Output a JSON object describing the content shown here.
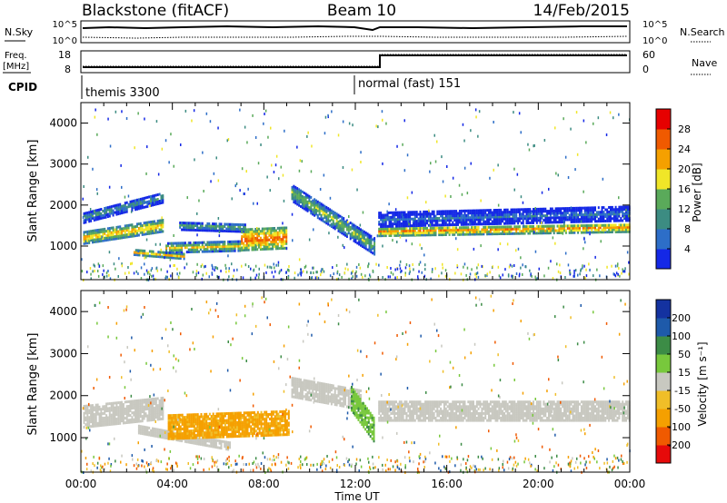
{
  "header": {
    "station": "Blackstone (fitACF)",
    "beam": "Beam 10",
    "date": "14/Feb/2015"
  },
  "noise_panel": {
    "left_label": "N.Sky",
    "right_label": "N.Search",
    "ticks": [
      "10^5",
      "10^0"
    ]
  },
  "freq_panel": {
    "left_label_top": "Freq.",
    "left_label_bottom": "[MHz]",
    "left_ticks": [
      "18",
      "8"
    ],
    "right_label": "Nave",
    "right_ticks": [
      "60",
      "0"
    ]
  },
  "cpid": {
    "label": "CPID",
    "modes": [
      "themis 3300",
      "normal (fast) 151"
    ]
  },
  "x_axis": {
    "ticks": [
      "00:00",
      "04:00",
      "08:00",
      "12:00",
      "16:00",
      "20:00",
      "00:00"
    ],
    "label": "Time UT"
  },
  "y_axis": {
    "ticks": [
      "1000",
      "2000",
      "3000",
      "4000"
    ],
    "label": "Slant Range [km]"
  },
  "power_panel": {
    "colorbar_label": "Power [dB]",
    "colorbar_ticks": [
      "4",
      "8",
      "12",
      "16",
      "20",
      "24",
      "28"
    ],
    "colors": [
      "#1428e6",
      "#2d6ec8",
      "#3c8c82",
      "#5aaa5a",
      "#f0e628",
      "#f5a000",
      "#f05a00",
      "#e60000"
    ]
  },
  "velocity_panel": {
    "colorbar_label": "Velocity [m s⁻¹]",
    "colorbar_ticks": [
      "-200",
      "-100",
      "-50",
      "-15",
      "15",
      "50",
      "100",
      "200"
    ],
    "colors": [
      "#e60a0a",
      "#f05a00",
      "#f5a000",
      "#f0be28",
      "#c8c8c0",
      "#78c83c",
      "#3c8c46",
      "#1e5aaa",
      "#1432a0"
    ]
  },
  "chart_data": {
    "type": "heatmap",
    "x_range_hours": [
      0,
      24
    ],
    "y_range_km": [
      180,
      4500
    ],
    "mode_change_hour": 13,
    "power_echo_bands": [
      {
        "start_hour": 0.1,
        "end_hour": 3.6,
        "center_km": [
          1200,
          1500
        ],
        "width_km": 280,
        "power_db": 22
      },
      {
        "start_hour": 0.1,
        "end_hour": 3.6,
        "center_km": [
          1700,
          2200
        ],
        "width_km": 260,
        "power_db": 12
      },
      {
        "start_hour": 2.3,
        "end_hour": 4.5,
        "center_km": [
          850,
          750
        ],
        "width_km": 120,
        "power_db": 22
      },
      {
        "start_hour": 3.7,
        "end_hour": 7.0,
        "center_km": [
          950,
          1000
        ],
        "width_km": 220,
        "power_db": 20
      },
      {
        "start_hour": 4.3,
        "end_hour": 7.2,
        "center_km": [
          1500,
          1450
        ],
        "width_km": 200,
        "power_db": 14
      },
      {
        "start_hour": 7.0,
        "end_hour": 9.0,
        "center_km": [
          1150,
          1200
        ],
        "width_km": 500,
        "power_db": 26
      },
      {
        "start_hour": 9.2,
        "end_hour": 12.8,
        "center_km": [
          2300,
          1000
        ],
        "width_km": 400,
        "power_db": 16
      },
      {
        "start_hour": 13.0,
        "end_hour": 24.0,
        "center_km": [
          1350,
          1450
        ],
        "width_km": 200,
        "power_db": 24
      },
      {
        "start_hour": 13.0,
        "end_hour": 24.0,
        "center_km": [
          1650,
          1800
        ],
        "width_km": 350,
        "power_db": 8
      }
    ],
    "velocity_regions": [
      {
        "start_hour": 0.1,
        "end_hour": 3.6,
        "center_km": [
          1500,
          1700
        ],
        "width_km": 500,
        "velocity_ms": 0
      },
      {
        "start_hour": 2.5,
        "end_hour": 6.5,
        "center_km": [
          1200,
          800
        ],
        "width_km": 180,
        "velocity_ms": 0
      },
      {
        "start_hour": 3.8,
        "end_hour": 9.1,
        "center_km": [
          1250,
          1350
        ],
        "width_km": 550,
        "velocity_ms": -60
      },
      {
        "start_hour": 9.2,
        "end_hour": 12.2,
        "center_km": [
          2200,
          1900
        ],
        "width_km": 450,
        "velocity_ms": 0
      },
      {
        "start_hour": 11.8,
        "end_hour": 12.8,
        "center_km": [
          1950,
          1200
        ],
        "width_km": 600,
        "velocity_ms": 40
      },
      {
        "start_hour": 13.0,
        "end_hour": 24.0,
        "center_km": [
          1650,
          1650
        ],
        "width_km": 480,
        "velocity_ms": 0
      }
    ]
  }
}
